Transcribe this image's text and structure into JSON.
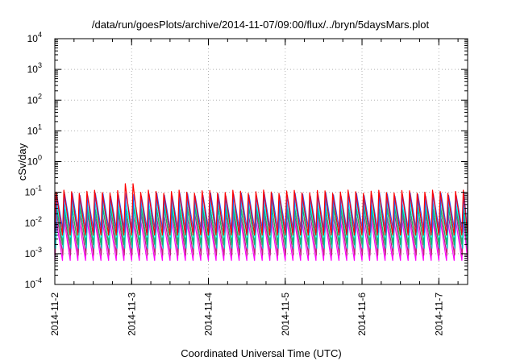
{
  "chart_data": {
    "type": "line",
    "title": "/data/run/goesPlots/archive/2014-11-07/09:00/flux/../bryn/5daysMars.plot",
    "xlabel": "Coordinated Universal Time (UTC)",
    "ylabel": "cSv/day",
    "x_scale": "date",
    "x_range": [
      "2014-11-02T00:00",
      "2014-11-07T09:00"
    ],
    "y_scale": "log",
    "ylim": [
      0.0001,
      10000
    ],
    "y_ticks": [
      {
        "value": 0.0001,
        "base": "10",
        "exp": "-4"
      },
      {
        "value": 0.001,
        "base": "10",
        "exp": "-3"
      },
      {
        "value": 0.01,
        "base": "10",
        "exp": "-2"
      },
      {
        "value": 0.1,
        "base": "10",
        "exp": "-1"
      },
      {
        "value": 1,
        "base": "10",
        "exp": "0"
      },
      {
        "value": 10,
        "base": "10",
        "exp": "1"
      },
      {
        "value": 100,
        "base": "10",
        "exp": "2"
      },
      {
        "value": 1000,
        "base": "10",
        "exp": "3"
      },
      {
        "value": 10000,
        "base": "10",
        "exp": "4"
      }
    ],
    "x_ticks": [
      {
        "value": "2014-11-02T00:00",
        "label": "2014-11-2"
      },
      {
        "value": "2014-11-03T00:00",
        "label": "2014-11-3"
      },
      {
        "value": "2014-11-04T00:00",
        "label": "2014-11-4"
      },
      {
        "value": "2014-11-05T00:00",
        "label": "2014-11-5"
      },
      {
        "value": "2014-11-06T00:00",
        "label": "2014-11-6"
      },
      {
        "value": "2014-11-07T00:00",
        "label": "2014-11-7"
      }
    ],
    "grid": true,
    "legend": "none",
    "pattern": {
      "shape": "sawtooth",
      "cycles_per_day": 10,
      "description": "many overlapping series each ramping up sharply then decaying, about 10 cycles per day"
    },
    "series": [
      {
        "color": "#ff00ff",
        "peak": 0.013,
        "trough": 0.0006
      },
      {
        "color": "#c02080",
        "peak": 0.02,
        "trough": 0.0009
      },
      {
        "color": "#00bfbf",
        "peak": 0.03,
        "trough": 0.0015
      },
      {
        "color": "#20b060",
        "peak": 0.04,
        "trough": 0.002
      },
      {
        "color": "#00ffff",
        "peak": 0.05,
        "trough": 0.0035
      },
      {
        "color": "#3050ff",
        "peak": 0.085,
        "trough": 0.005
      },
      {
        "color": "#ff0000",
        "peak": 0.105,
        "trough": 0.004
      }
    ],
    "highlight": {
      "date": "2014-11-02T23:00",
      "peak": 0.19,
      "color": "#ff0000"
    }
  }
}
